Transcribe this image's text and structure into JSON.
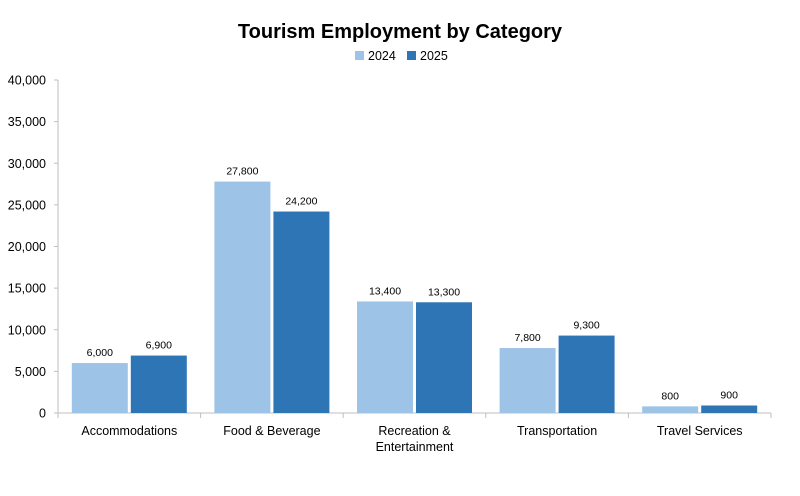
{
  "chart_data": {
    "type": "bar",
    "title": "Tourism Employment by Category",
    "xlabel": "",
    "ylabel": "",
    "categories": [
      "Accommodations",
      "Food & Beverage",
      "Recreation & Entertainment",
      "Transportation",
      "Travel Services"
    ],
    "category_label_lines": [
      [
        "Accommodations"
      ],
      [
        "Food & Beverage"
      ],
      [
        "Recreation &",
        "Entertainment"
      ],
      [
        "Transportation"
      ],
      [
        "Travel Services"
      ]
    ],
    "series": [
      {
        "name": "2024",
        "color": "#9dc3e6",
        "values": [
          6000,
          27800,
          13400,
          7800,
          800
        ],
        "labels": [
          "6,000",
          "27,800",
          "13,400",
          "7,800",
          "800"
        ]
      },
      {
        "name": "2025",
        "color": "#2e75b6",
        "values": [
          6900,
          24200,
          13300,
          9300,
          900
        ],
        "labels": [
          "6,900",
          "24,200",
          "13,300",
          "9,300",
          "900"
        ]
      }
    ],
    "ylim": [
      0,
      40000
    ],
    "y_ticks": [
      0,
      5000,
      10000,
      15000,
      20000,
      25000,
      30000,
      35000,
      40000
    ],
    "y_tick_labels": [
      "0",
      "5,000",
      "10,000",
      "15,000",
      "20,000",
      "25,000",
      "30,000",
      "35,000",
      "40,000"
    ],
    "grid": false,
    "legend_position": "top-center"
  }
}
